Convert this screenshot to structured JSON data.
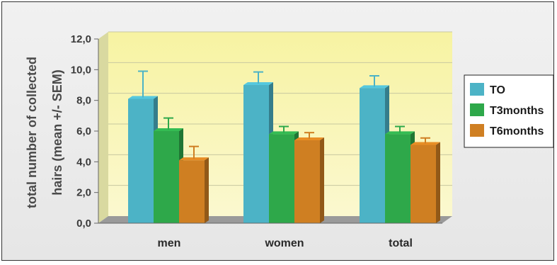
{
  "chart_data": {
    "type": "bar",
    "title": "",
    "ylabel_line1": "total number of collected",
    "ylabel_line2": "hairs (mean +/- SEM)",
    "xlabel": "",
    "categories": [
      "men",
      "women",
      "total"
    ],
    "ylim": [
      0,
      12
    ],
    "yticks": [
      "0,0",
      "2,0",
      "4,0",
      "6,0",
      "8,0",
      "10,0",
      "12,0"
    ],
    "grid": true,
    "legend_position": "right",
    "series": [
      {
        "name": "TO",
        "color": "#4cb3c6",
        "values": [
          8.1,
          9.0,
          8.8
        ],
        "errors": [
          1.8,
          0.85,
          0.8
        ]
      },
      {
        "name": "T3months",
        "color": "#2ea84a",
        "values": [
          6.0,
          5.8,
          5.8
        ],
        "errors": [
          0.85,
          0.5,
          0.5
        ]
      },
      {
        "name": "T6months",
        "color": "#cf7f22",
        "values": [
          4.1,
          5.4,
          5.1
        ],
        "errors": [
          0.9,
          0.5,
          0.45
        ]
      }
    ]
  }
}
